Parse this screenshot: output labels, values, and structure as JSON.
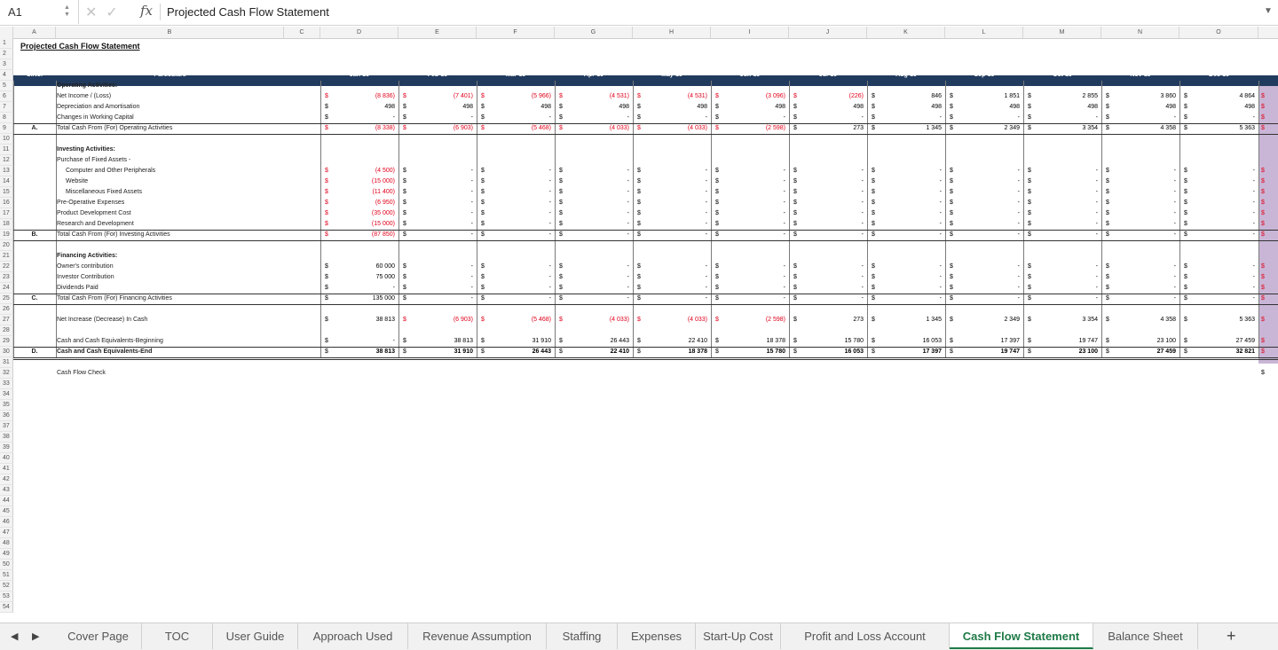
{
  "formula_bar": {
    "cell_ref": "A1",
    "fx": "fx",
    "value": "Projected Cash Flow Statement"
  },
  "columns": [
    "A",
    "B",
    "C",
    "D",
    "E",
    "F",
    "G",
    "H",
    "I",
    "J",
    "K",
    "L",
    "M",
    "N",
    "O"
  ],
  "title": "Projected Cash Flow Statement",
  "header": {
    "sno": "S.No.",
    "particulars": "Particulars",
    "months": [
      "Jan-19",
      "Feb-19",
      "Mar-19",
      "Apr-19",
      "May-19",
      "Jun-19",
      "Jul-19",
      "Aug-19",
      "Sep-19",
      "Oct-19",
      "Nov-19",
      "Dec-19"
    ]
  },
  "rows": [
    {
      "r": 5,
      "label": "Operating Activities:",
      "bold": true
    },
    {
      "r": 6,
      "label": "Net Income / (Loss)",
      "vals": [
        "(8 836)",
        "(7 401)",
        "(5 966)",
        "(4 531)",
        "(4 531)",
        "(3 096)",
        "(226)",
        "846",
        "1 851",
        "2 855",
        "3 860",
        "4 864"
      ]
    },
    {
      "r": 7,
      "label": "Depreciation and Amortisation",
      "vals": [
        "498",
        "498",
        "498",
        "498",
        "498",
        "498",
        "498",
        "498",
        "498",
        "498",
        "498",
        "498"
      ]
    },
    {
      "r": 8,
      "label": "Changes in Working Capital",
      "vals": [
        "-",
        "-",
        "-",
        "-",
        "-",
        "-",
        "-",
        "-",
        "-",
        "-",
        "-",
        "-"
      ]
    },
    {
      "r": 9,
      "sno": "A.",
      "label": "Total Cash From (For) Operating Activities",
      "vals": [
        "(8 338)",
        "(6 903)",
        "(5 468)",
        "(4 033)",
        "(4 033)",
        "(2 598)",
        "273",
        "1 345",
        "2 349",
        "3 354",
        "4 358",
        "5 363"
      ]
    },
    {
      "r": 11,
      "label": "Investing Activities:",
      "bold": true
    },
    {
      "r": 12,
      "label": "Purchase of Fixed Assets -"
    },
    {
      "r": 13,
      "label": "Computer and Other Peripherals",
      "indent": true,
      "vals": [
        "(4 500)",
        "-",
        "-",
        "-",
        "-",
        "-",
        "-",
        "-",
        "-",
        "-",
        "-",
        "-"
      ]
    },
    {
      "r": 14,
      "label": "Website",
      "indent": true,
      "vals": [
        "(15 000)",
        "-",
        "-",
        "-",
        "-",
        "-",
        "-",
        "-",
        "-",
        "-",
        "-",
        "-"
      ]
    },
    {
      "r": 15,
      "label": "Miscellaneous Fixed Assets",
      "indent": true,
      "vals": [
        "(11 400)",
        "-",
        "-",
        "-",
        "-",
        "-",
        "-",
        "-",
        "-",
        "-",
        "-",
        "-"
      ]
    },
    {
      "r": 16,
      "label": "Pre-Operative Expenses",
      "vals": [
        "(6 950)",
        "-",
        "-",
        "-",
        "-",
        "-",
        "-",
        "-",
        "-",
        "-",
        "-",
        "-"
      ]
    },
    {
      "r": 17,
      "label": "Product Development Cost",
      "vals": [
        "(35 000)",
        "-",
        "-",
        "-",
        "-",
        "-",
        "-",
        "-",
        "-",
        "-",
        "-",
        "-"
      ]
    },
    {
      "r": 18,
      "label": "Research and Development",
      "vals": [
        "(15 000)",
        "-",
        "-",
        "-",
        "-",
        "-",
        "-",
        "-",
        "-",
        "-",
        "-",
        "-"
      ]
    },
    {
      "r": 19,
      "sno": "B.",
      "label": "Total Cash From (For) Investing Activities",
      "vals": [
        "(87 850)",
        "-",
        "-",
        "-",
        "-",
        "-",
        "-",
        "-",
        "-",
        "-",
        "-",
        "-"
      ]
    },
    {
      "r": 21,
      "label": "Financing Activities:",
      "bold": true
    },
    {
      "r": 22,
      "label": "Owner's contribution",
      "vals": [
        "60 000",
        "-",
        "-",
        "-",
        "-",
        "-",
        "-",
        "-",
        "-",
        "-",
        "-",
        "-"
      ]
    },
    {
      "r": 23,
      "label": "Investor Contribution",
      "vals": [
        "75 000",
        "-",
        "-",
        "-",
        "-",
        "-",
        "-",
        "-",
        "-",
        "-",
        "-",
        "-"
      ]
    },
    {
      "r": 24,
      "label": "Dividends Paid",
      "vals": [
        "-",
        "-",
        "-",
        "-",
        "-",
        "-",
        "-",
        "-",
        "-",
        "-",
        "-",
        "-"
      ]
    },
    {
      "r": 25,
      "sno": "C.",
      "label": "Total Cash From (For) Financing Activities",
      "vals": [
        "135 000",
        "-",
        "-",
        "-",
        "-",
        "-",
        "-",
        "-",
        "-",
        "-",
        "-",
        "-"
      ]
    },
    {
      "r": 27,
      "label": "Net Increase (Decrease) In Cash",
      "vals": [
        "38 813",
        "(6 903)",
        "(5 468)",
        "(4 033)",
        "(4 033)",
        "(2 598)",
        "273",
        "1 345",
        "2 349",
        "3 354",
        "4 358",
        "5 363"
      ]
    },
    {
      "r": 29,
      "label": "Cash and Cash Equivalents-Beginning",
      "vals": [
        "-",
        "38 813",
        "31 910",
        "26 443",
        "22 410",
        "18 378",
        "15 780",
        "16 053",
        "17 397",
        "19 747",
        "23 100",
        "27 459"
      ]
    },
    {
      "r": 30,
      "sno": "D.",
      "label": "Cash and Cash Equivalents-End",
      "bold": true,
      "vals": [
        "38 813",
        "31 910",
        "26 443",
        "22 410",
        "18 378",
        "15 780",
        "16 053",
        "17 397",
        "19 747",
        "23 100",
        "27 459",
        "32 821"
      ]
    },
    {
      "r": 32,
      "label": "Cash Flow Check",
      "check": true
    }
  ],
  "currency": "$",
  "sheet_tabs": [
    "Cover Page",
    "TOC",
    "User Guide",
    "Approach Used",
    "Revenue Assumption",
    "Staffing",
    "Expenses",
    "Start-Up Cost",
    "Profit and Loss Account",
    "Cash Flow Statement",
    "Balance Sheet"
  ],
  "active_tab": "Cash Flow Statement",
  "nav": {
    "prev": "◀",
    "next": "▶",
    "add": "+"
  }
}
